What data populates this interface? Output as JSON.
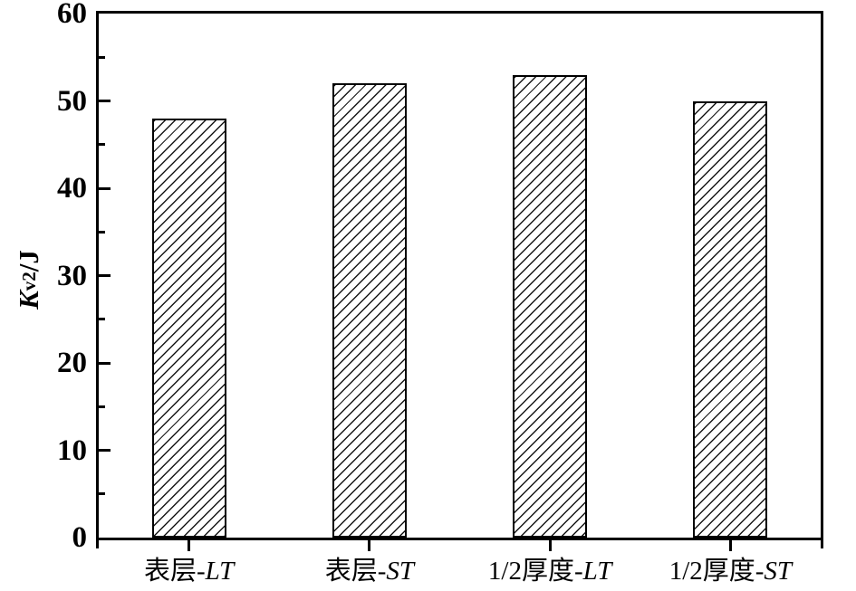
{
  "chart_data": {
    "type": "bar",
    "title": "",
    "categories": [
      "表层-LT",
      "表层-ST",
      "1/2厚度-LT",
      "1/2厚度-ST"
    ],
    "category_parts": [
      {
        "base": "表层-",
        "italic": "LT"
      },
      {
        "base": "表层-",
        "italic": "ST"
      },
      {
        "base": "1/2厚度-",
        "italic": "LT"
      },
      {
        "base": "1/2厚度-",
        "italic": "ST"
      }
    ],
    "values": [
      48,
      52,
      53,
      50
    ],
    "xlabel": "",
    "ylabel": "Kv2/J",
    "ylabel_parts": {
      "symbol": "K",
      "subscript": "v2",
      "unit": "/J"
    },
    "ylim": [
      0,
      60
    ],
    "yticks_major": [
      0,
      10,
      20,
      30,
      40,
      50,
      60
    ],
    "yticks_minor": [
      5,
      15,
      25,
      35,
      45,
      55
    ],
    "grid": false,
    "legend": "none",
    "bar_style": {
      "fill_color": "#ffffff",
      "hatch": "diagonal-forward-slash",
      "edge_color": "#000000"
    },
    "axis_color": "#000000",
    "background_color": "#ffffff"
  }
}
